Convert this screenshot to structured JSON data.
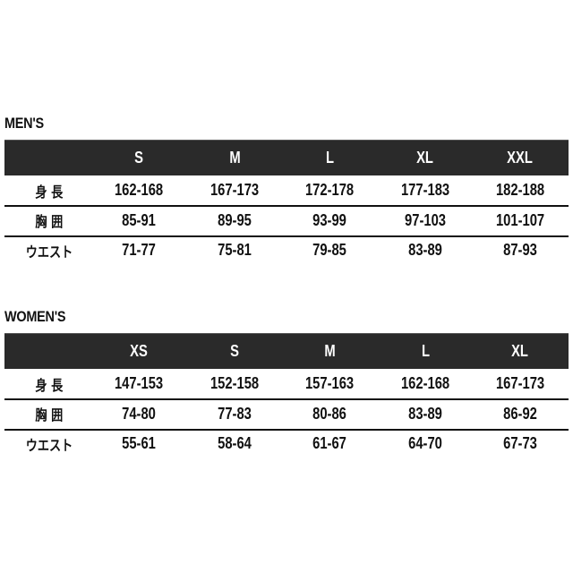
{
  "mens": {
    "title": "MEN'S",
    "sizes": [
      "S",
      "M",
      "L",
      "XL",
      "XXL"
    ],
    "rows": [
      {
        "label": "身 長",
        "values": [
          "162-168",
          "167-173",
          "172-178",
          "177-183",
          "182-188"
        ]
      },
      {
        "label": "胸 囲",
        "values": [
          "85-91",
          "89-95",
          "93-99",
          "97-103",
          "101-107"
        ]
      },
      {
        "label": "ウエスト",
        "values": [
          "71-77",
          "75-81",
          "79-85",
          "83-89",
          "87-93"
        ]
      }
    ]
  },
  "womens": {
    "title": "WOMEN'S",
    "sizes": [
      "XS",
      "S",
      "M",
      "L",
      "XL"
    ],
    "rows": [
      {
        "label": "身 長",
        "values": [
          "147-153",
          "152-158",
          "157-163",
          "162-168",
          "167-173"
        ]
      },
      {
        "label": "胸 囲",
        "values": [
          "74-80",
          "77-83",
          "80-86",
          "83-89",
          "86-92"
        ]
      },
      {
        "label": "ウエスト",
        "values": [
          "55-61",
          "58-64",
          "61-67",
          "64-70",
          "67-73"
        ]
      }
    ]
  },
  "colors": {
    "header_bg": "#2a2a2a",
    "header_text": "#ffffff",
    "text": "#111111"
  }
}
